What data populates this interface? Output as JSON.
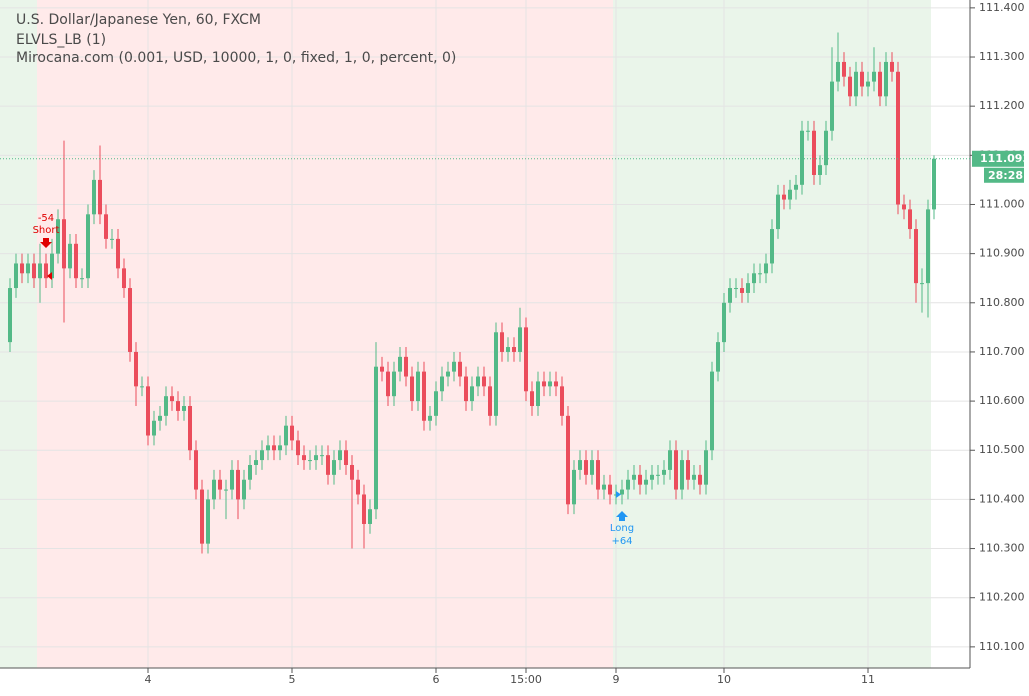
{
  "chart_data": {
    "type": "candlestick",
    "title": "U.S. Dollar/Japanese Yen, 60, FXCM",
    "indicators": [
      "ELVLS_LB (1)",
      "Mirocana.com (0.001, USD, 10000, 1, 0, fixed, 1, 0, percent, 0)"
    ],
    "up_color": "#53b987",
    "down_color": "#eb4d5c",
    "countdown": "28:28",
    "signals": [
      {
        "label": "Short",
        "pnl": -54,
        "color": "#e00000"
      },
      {
        "label": "Long",
        "pnl": {
          "value": 64,
          "label": "+64"
        },
        "color": "#2196f3"
      }
    ],
    "categories": [
      null,
      null,
      null,
      null,
      null,
      null,
      null,
      null,
      null,
      null,
      null,
      null,
      null,
      null,
      null,
      null,
      null,
      null,
      null,
      null,
      null,
      null,
      null,
      "4",
      null,
      null,
      null,
      null,
      null,
      null,
      null,
      null,
      null,
      null,
      null,
      null,
      null,
      null,
      null,
      null,
      null,
      null,
      null,
      null,
      null,
      null,
      null,
      "5",
      null,
      null,
      null,
      null,
      null,
      null,
      null,
      null,
      null,
      null,
      null,
      null,
      null,
      null,
      null,
      null,
      null,
      null,
      null,
      null,
      null,
      null,
      null,
      "6",
      null,
      null,
      null,
      null,
      null,
      null,
      null,
      null,
      null,
      null,
      null,
      null,
      null,
      null,
      "15:00",
      null,
      null,
      null,
      null,
      null,
      null,
      null,
      null,
      null,
      null,
      null,
      null,
      null,
      null,
      "9",
      null,
      null,
      null,
      null,
      null,
      null,
      null,
      null,
      null,
      null,
      null,
      null,
      null,
      null,
      null,
      null,
      null,
      "10",
      null,
      null,
      null,
      null,
      null,
      null,
      null,
      null,
      null,
      null,
      null,
      null,
      null,
      null,
      null,
      null,
      null,
      null,
      null,
      null,
      null,
      null,
      null,
      "11",
      null,
      null,
      null,
      null,
      null,
      null,
      null,
      null,
      null,
      null,
      null
    ],
    "open": [
      110.72,
      110.83,
      110.88,
      110.86,
      110.88,
      110.85,
      110.88,
      110.85,
      110.9,
      110.97,
      110.87,
      110.92,
      110.85,
      110.85,
      110.98,
      111.05,
      110.98,
      110.93,
      110.93,
      110.87,
      110.83,
      110.7,
      110.63,
      110.63,
      110.53,
      110.56,
      110.57,
      110.61,
      110.6,
      110.58,
      110.59,
      110.5,
      110.42,
      110.31,
      110.4,
      110.44,
      110.42,
      110.42,
      110.46,
      110.4,
      110.44,
      110.47,
      110.48,
      110.5,
      110.51,
      110.5,
      110.51,
      110.55,
      110.52,
      110.49,
      110.48,
      110.48,
      110.49,
      110.49,
      110.45,
      110.48,
      110.5,
      110.47,
      110.44,
      110.41,
      110.35,
      110.38,
      110.67,
      110.66,
      110.61,
      110.66,
      110.69,
      110.65,
      110.6,
      110.66,
      110.56,
      110.57,
      110.62,
      110.65,
      110.66,
      110.68,
      110.65,
      110.6,
      110.63,
      110.65,
      110.63,
      110.57,
      110.74,
      110.7,
      110.71,
      110.7,
      110.75,
      110.62,
      110.59,
      110.64,
      110.63,
      110.64,
      110.63,
      110.57,
      110.39,
      110.46,
      110.48,
      110.45,
      110.48,
      110.42,
      110.43,
      110.41,
      110.41,
      110.42,
      110.44,
      110.45,
      110.43,
      110.44,
      110.45,
      110.45,
      110.46,
      110.5,
      110.42,
      110.48,
      110.44,
      110.45,
      110.43,
      110.5,
      110.66,
      110.72,
      110.8,
      110.83,
      110.83,
      110.82,
      110.84,
      110.86,
      110.86,
      110.88,
      110.95,
      111.02,
      111.01,
      111.03,
      111.04,
      111.15,
      111.15,
      111.06,
      111.08,
      111.15,
      111.25,
      111.29,
      111.26,
      111.22,
      111.27,
      111.24,
      111.25,
      111.27,
      111.22,
      111.29,
      111.27,
      111.0,
      110.99,
      110.95,
      110.84,
      110.84,
      110.99
    ],
    "high": [
      110.85,
      110.9,
      110.9,
      110.9,
      110.9,
      110.92,
      110.9,
      110.93,
      110.99,
      111.13,
      110.94,
      110.94,
      110.87,
      111.0,
      111.07,
      111.12,
      111.0,
      110.95,
      110.95,
      110.89,
      110.85,
      110.72,
      110.65,
      110.65,
      110.58,
      110.59,
      110.63,
      110.63,
      110.62,
      110.61,
      110.61,
      110.52,
      110.44,
      110.42,
      110.46,
      110.46,
      110.44,
      110.48,
      110.48,
      110.46,
      110.49,
      110.5,
      110.52,
      110.53,
      110.53,
      110.53,
      110.57,
      110.57,
      110.54,
      110.51,
      110.5,
      110.51,
      110.51,
      110.51,
      110.5,
      110.52,
      110.52,
      110.49,
      110.46,
      110.43,
      110.4,
      110.72,
      110.69,
      110.68,
      110.68,
      110.71,
      110.71,
      110.67,
      110.68,
      110.68,
      110.59,
      110.64,
      110.67,
      110.68,
      110.7,
      110.7,
      110.67,
      110.65,
      110.67,
      110.67,
      110.65,
      110.76,
      110.76,
      110.73,
      110.73,
      110.79,
      110.77,
      110.64,
      110.66,
      110.66,
      110.66,
      110.66,
      110.65,
      110.59,
      110.48,
      110.5,
      110.5,
      110.5,
      110.5,
      110.45,
      110.45,
      110.43,
      110.44,
      110.46,
      110.47,
      110.47,
      110.46,
      110.47,
      110.47,
      110.48,
      110.52,
      110.52,
      110.5,
      110.5,
      110.47,
      110.47,
      110.52,
      110.68,
      110.74,
      110.82,
      110.85,
      110.85,
      110.85,
      110.86,
      110.88,
      110.88,
      110.9,
      110.97,
      111.04,
      111.04,
      111.05,
      111.06,
      111.17,
      111.17,
      111.17,
      111.1,
      111.17,
      111.32,
      111.35,
      111.31,
      111.28,
      111.29,
      111.29,
      111.27,
      111.32,
      111.29,
      111.31,
      111.31,
      111.29,
      111.02,
      111.01,
      110.97,
      110.87,
      111.01,
      111.1
    ],
    "low": [
      110.7,
      110.81,
      110.84,
      110.84,
      110.83,
      110.8,
      110.83,
      110.83,
      110.88,
      110.76,
      110.85,
      110.83,
      110.83,
      110.83,
      110.96,
      110.96,
      110.91,
      110.91,
      110.85,
      110.81,
      110.68,
      110.59,
      110.61,
      110.51,
      110.51,
      110.54,
      110.55,
      110.58,
      110.56,
      110.56,
      110.48,
      110.4,
      110.29,
      110.29,
      110.38,
      110.4,
      110.36,
      110.4,
      110.36,
      110.38,
      110.42,
      110.45,
      110.46,
      110.48,
      110.48,
      110.48,
      110.49,
      110.5,
      110.47,
      110.46,
      110.46,
      110.46,
      110.47,
      110.43,
      110.43,
      110.46,
      110.45,
      110.3,
      110.39,
      110.3,
      110.33,
      110.36,
      110.64,
      110.59,
      110.59,
      110.64,
      110.63,
      110.58,
      110.58,
      110.54,
      110.54,
      110.55,
      110.6,
      110.63,
      110.64,
      110.63,
      110.58,
      110.58,
      110.61,
      110.61,
      110.55,
      110.55,
      110.68,
      110.68,
      110.68,
      110.68,
      110.6,
      110.57,
      110.57,
      110.61,
      110.61,
      110.61,
      110.55,
      110.37,
      110.37,
      110.44,
      110.43,
      110.43,
      110.4,
      110.4,
      110.39,
      110.39,
      110.39,
      110.4,
      110.42,
      110.41,
      110.41,
      110.42,
      110.43,
      110.43,
      110.44,
      110.4,
      110.4,
      110.42,
      110.42,
      110.41,
      110.41,
      110.48,
      110.64,
      110.7,
      110.78,
      110.81,
      110.8,
      110.8,
      110.82,
      110.84,
      110.84,
      110.86,
      110.93,
      110.99,
      110.99,
      111.01,
      111.02,
      111.13,
      111.04,
      111.04,
      111.06,
      111.13,
      111.23,
      111.24,
      111.2,
      111.2,
      111.22,
      111.22,
      111.23,
      111.2,
      111.2,
      111.25,
      110.98,
      110.97,
      110.93,
      110.8,
      110.78,
      110.77,
      110.97
    ],
    "close": [
      110.83,
      110.88,
      110.86,
      110.88,
      110.85,
      110.88,
      110.85,
      110.9,
      110.97,
      110.87,
      110.92,
      110.85,
      110.85,
      110.98,
      111.05,
      110.98,
      110.93,
      110.93,
      110.87,
      110.83,
      110.7,
      110.63,
      110.63,
      110.53,
      110.56,
      110.57,
      110.61,
      110.6,
      110.58,
      110.59,
      110.5,
      110.42,
      110.31,
      110.4,
      110.44,
      110.42,
      110.42,
      110.46,
      110.4,
      110.44,
      110.47,
      110.48,
      110.5,
      110.51,
      110.5,
      110.51,
      110.55,
      110.52,
      110.49,
      110.48,
      110.48,
      110.49,
      110.49,
      110.45,
      110.48,
      110.5,
      110.47,
      110.44,
      110.41,
      110.35,
      110.38,
      110.67,
      110.66,
      110.61,
      110.66,
      110.69,
      110.65,
      110.6,
      110.66,
      110.56,
      110.57,
      110.62,
      110.65,
      110.66,
      110.68,
      110.65,
      110.6,
      110.63,
      110.65,
      110.63,
      110.57,
      110.74,
      110.7,
      110.71,
      110.7,
      110.75,
      110.62,
      110.59,
      110.64,
      110.63,
      110.64,
      110.63,
      110.57,
      110.39,
      110.46,
      110.48,
      110.45,
      110.48,
      110.42,
      110.43,
      110.41,
      110.41,
      110.42,
      110.44,
      110.45,
      110.43,
      110.44,
      110.45,
      110.45,
      110.46,
      110.5,
      110.42,
      110.48,
      110.44,
      110.45,
      110.43,
      110.5,
      110.66,
      110.72,
      110.8,
      110.83,
      110.83,
      110.82,
      110.84,
      110.86,
      110.86,
      110.88,
      110.95,
      111.02,
      111.01,
      111.03,
      111.04,
      111.15,
      111.15,
      111.06,
      111.08,
      111.15,
      111.25,
      111.29,
      111.26,
      111.22,
      111.27,
      111.24,
      111.25,
      111.27,
      111.22,
      111.29,
      111.27,
      111.0,
      110.99,
      110.95,
      110.84,
      110.84,
      110.99,
      111.093
    ],
    "ylim": [
      110.057,
      111.416
    ],
    "yticks": [
      {
        "value": 110.1,
        "label": "110.100"
      },
      {
        "value": 110.2,
        "label": "110.200"
      },
      {
        "value": 110.3,
        "label": "110.300"
      },
      {
        "value": 110.4,
        "label": "110.400"
      },
      {
        "value": 110.5,
        "label": "110.500"
      },
      {
        "value": 110.6,
        "label": "110.600"
      },
      {
        "value": 110.7,
        "label": "110.700"
      },
      {
        "value": 110.8,
        "label": "110.800"
      },
      {
        "value": 110.9,
        "label": "110.900"
      },
      {
        "value": 111.0,
        "label": "111.000"
      },
      {
        "value": 111.1,
        "label": "111.100"
      },
      {
        "value": 111.2,
        "label": "111.200"
      },
      {
        "value": 111.3,
        "label": "111.300"
      },
      {
        "value": 111.4,
        "label": "111.400"
      }
    ],
    "grid": true
  }
}
